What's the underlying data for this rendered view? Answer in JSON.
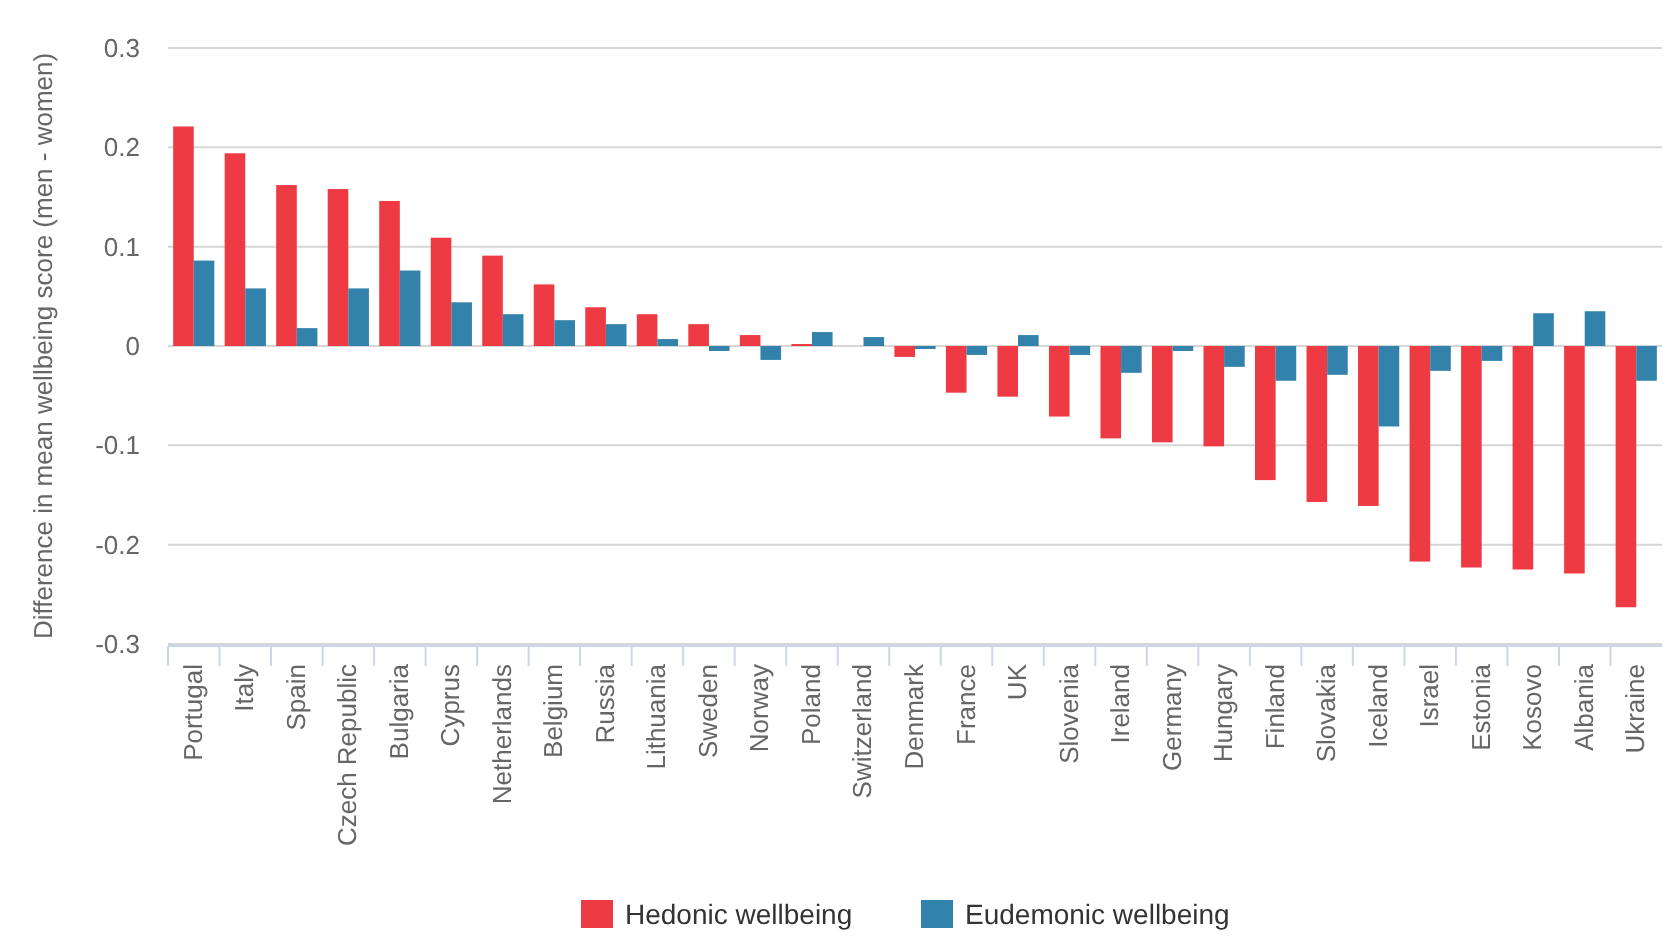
{
  "chart_data": {
    "type": "bar",
    "ylabel": "Difference in mean wellbeing score (men - women)",
    "categories": [
      "Portugal",
      "Italy",
      "Spain",
      "Czech Republic",
      "Bulgaria",
      "Cyprus",
      "Netherlands",
      "Belgium",
      "Russia",
      "Lithuania",
      "Sweden",
      "Norway",
      "Poland",
      "Switzerland",
      "Denmark",
      "France",
      "UK",
      "Slovenia",
      "Ireland",
      "Germany",
      "Hungary",
      "Finland",
      "Slovakia",
      "Iceland",
      "Israel",
      "Estonia",
      "Kosovo",
      "Albania",
      "Ukraine"
    ],
    "series": [
      {
        "name": "Hedonic wellbeing",
        "color": "#ee3a43",
        "values": [
          0.221,
          0.194,
          0.162,
          0.158,
          0.146,
          0.109,
          0.091,
          0.062,
          0.039,
          0.032,
          0.022,
          0.011,
          0.002,
          0,
          -0.011,
          -0.047,
          -0.051,
          -0.071,
          -0.093,
          -0.097,
          -0.101,
          -0.135,
          -0.157,
          -0.161,
          -0.217,
          -0.223,
          -0.225,
          -0.229,
          -0.263
        ]
      },
      {
        "name": "Eudemonic wellbeing",
        "color": "#3382ab",
        "values": [
          0.086,
          0.058,
          0.018,
          0.058,
          0.076,
          0.044,
          0.032,
          0.026,
          0.022,
          0.007,
          -0.005,
          -0.014,
          0.014,
          0.009,
          -0.003,
          -0.009,
          0.011,
          -0.009,
          -0.027,
          -0.005,
          -0.021,
          -0.035,
          -0.029,
          -0.081,
          -0.025,
          -0.015,
          0.033,
          0.035,
          -0.035
        ]
      }
    ],
    "ylim": [
      -0.3,
      0.3
    ],
    "yticks": [
      -0.3,
      -0.2,
      -0.1,
      0,
      0.1,
      0.2,
      0.3
    ],
    "grid": "y",
    "legend": "bottom"
  }
}
